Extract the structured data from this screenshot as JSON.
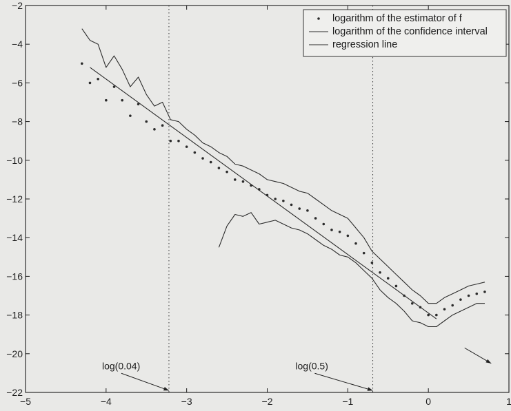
{
  "chart_data": {
    "type": "line",
    "title": "",
    "xlabel": "",
    "ylabel": "",
    "xlim": [
      -5,
      1
    ],
    "ylim": [
      -22,
      -2
    ],
    "xticks": [
      -5,
      -4,
      -3,
      -2,
      -1,
      0,
      1
    ],
    "yticks": [
      -22,
      -20,
      -18,
      -16,
      -14,
      -12,
      -10,
      -8,
      -6,
      -4,
      -2
    ],
    "grid": false,
    "legend_position": "top-right",
    "colors": {
      "series": "#2b2b2b",
      "axis": "#1a1a1a",
      "background": "#e9e9e7"
    },
    "legend": [
      {
        "label": "logarithm of the estimator of f",
        "marker": "dot"
      },
      {
        "label": "logarithm of the confidence interval",
        "marker": "line"
      },
      {
        "label": "regression line",
        "marker": "line"
      }
    ],
    "vertical_lines": [
      {
        "x": -3.22,
        "style": "dotted"
      },
      {
        "x": -0.69,
        "style": "dotted"
      }
    ],
    "annotations": [
      {
        "text": "log(0.04)",
        "text_x": -4.05,
        "text_y": -20.8,
        "arrow_to": [
          -3.22,
          -21.9
        ]
      },
      {
        "text": "log(0.5)",
        "text_x": -1.65,
        "text_y": -20.8,
        "arrow_to": [
          -0.69,
          -21.9
        ]
      },
      {
        "text": "",
        "text_x": 0.45,
        "text_y": -19.7,
        "arrow_to": [
          0.78,
          -20.5
        ]
      }
    ],
    "series": [
      {
        "name": "logarithm of the estimator of f",
        "marker": "dot",
        "x": [
          -4.3,
          -4.2,
          -4.1,
          -4.0,
          -3.9,
          -3.8,
          -3.7,
          -3.6,
          -3.5,
          -3.4,
          -3.3,
          -3.2,
          -3.1,
          -3.0,
          -2.9,
          -2.8,
          -2.7,
          -2.6,
          -2.5,
          -2.4,
          -2.3,
          -2.2,
          -2.1,
          -2.0,
          -1.9,
          -1.8,
          -1.7,
          -1.6,
          -1.5,
          -1.4,
          -1.3,
          -1.2,
          -1.1,
          -1.0,
          -0.9,
          -0.8,
          -0.7,
          -0.6,
          -0.5,
          -0.4,
          -0.3,
          -0.2,
          -0.1,
          0.0,
          0.1,
          0.2,
          0.3,
          0.4,
          0.5,
          0.6,
          0.7
        ],
        "y": [
          -5.0,
          -6.0,
          -5.8,
          -6.9,
          -6.2,
          -6.9,
          -7.7,
          -7.1,
          -8.0,
          -8.4,
          -8.2,
          -9.0,
          -9.0,
          -9.3,
          -9.6,
          -9.9,
          -10.1,
          -10.4,
          -10.6,
          -11.0,
          -11.1,
          -11.3,
          -11.5,
          -11.8,
          -12.0,
          -12.1,
          -12.3,
          -12.5,
          -12.6,
          -13.0,
          -13.3,
          -13.6,
          -13.7,
          -13.9,
          -14.3,
          -14.8,
          -15.3,
          -15.8,
          -16.1,
          -16.5,
          -17.0,
          -17.4,
          -17.6,
          -18.0,
          -18.0,
          -17.7,
          -17.5,
          -17.2,
          -17.0,
          -16.9,
          -16.8
        ]
      },
      {
        "name": "logarithm of the confidence interval",
        "marker": "line",
        "x": [
          -4.3,
          -4.2,
          -4.1,
          -4.0,
          -3.9,
          -3.8,
          -3.7,
          -3.6,
          -3.5,
          -3.4,
          -3.3,
          -3.2,
          -3.1,
          -3.0,
          -2.9,
          -2.8,
          -2.7,
          -2.6,
          -2.5,
          -2.4,
          -2.3,
          -2.2,
          -2.1,
          -2.0,
          -1.9,
          -1.8,
          -1.7,
          -1.6,
          -1.5,
          -1.4,
          -1.3,
          -1.2,
          -1.1,
          -1.0,
          -0.9,
          -0.8,
          -0.7,
          -0.6,
          -0.5,
          -0.4,
          -0.3,
          -0.2,
          -0.1,
          0.0,
          0.1,
          0.2,
          0.3,
          0.4,
          0.5,
          0.6,
          0.7
        ],
        "y": [
          -3.2,
          -3.8,
          -4.0,
          -5.2,
          -4.6,
          -5.3,
          -6.2,
          -5.7,
          -6.6,
          -7.2,
          -7.0,
          -7.9,
          -8.0,
          -8.4,
          -8.7,
          -9.1,
          -9.3,
          -9.6,
          -9.8,
          -10.2,
          -10.3,
          -10.5,
          -10.7,
          -11.0,
          -11.1,
          -11.2,
          -11.4,
          -11.6,
          -11.7,
          -12.0,
          -12.3,
          -12.6,
          -12.8,
          -13.0,
          -13.5,
          -14.0,
          -14.7,
          -15.1,
          -15.5,
          -15.9,
          -16.3,
          -16.7,
          -17.0,
          -17.4,
          -17.4,
          -17.1,
          -16.9,
          -16.7,
          -16.5,
          -16.4,
          -16.3
        ]
      },
      {
        "name": "",
        "marker": "line",
        "x": [
          -2.6,
          -2.5,
          -2.4,
          -2.3,
          -2.2,
          -2.1,
          -2.0,
          -1.9,
          -1.8,
          -1.7,
          -1.6,
          -1.5,
          -1.4,
          -1.3,
          -1.2,
          -1.1,
          -1.0,
          -0.9,
          -0.8,
          -0.7,
          -0.6,
          -0.5,
          -0.4,
          -0.3,
          -0.2,
          -0.1,
          0.0,
          0.1,
          0.2,
          0.3,
          0.4,
          0.5,
          0.6,
          0.7
        ],
        "y": [
          -14.5,
          -13.4,
          -12.8,
          -12.9,
          -12.7,
          -13.3,
          -13.2,
          -13.1,
          -13.3,
          -13.5,
          -13.6,
          -13.8,
          -14.1,
          -14.4,
          -14.6,
          -14.9,
          -15.0,
          -15.3,
          -15.7,
          -16.1,
          -16.7,
          -17.1,
          -17.4,
          -17.8,
          -18.3,
          -18.4,
          -18.6,
          -18.6,
          -18.3,
          -18.0,
          -17.8,
          -17.6,
          -17.4,
          -17.4
        ]
      },
      {
        "name": "regression line",
        "marker": "line",
        "x": [
          -4.2,
          0.1
        ],
        "y": [
          -5.2,
          -18.2
        ]
      }
    ]
  }
}
